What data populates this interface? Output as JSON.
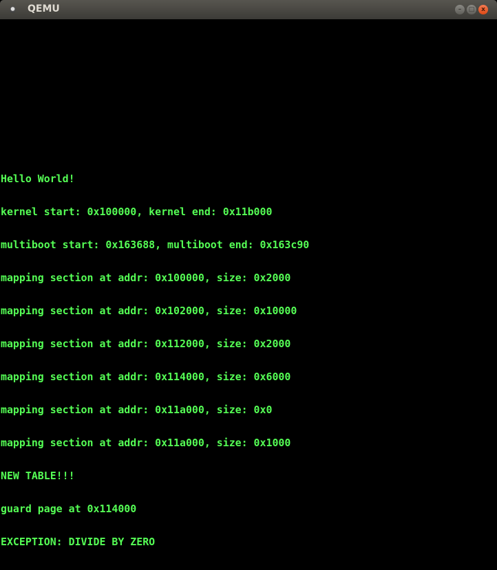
{
  "window": {
    "title": "QEMU",
    "buttons": {
      "minimize": "–",
      "maximize": "□",
      "close": "x"
    }
  },
  "console": {
    "text_color": "#55ff55",
    "lines": [
      "Hello World!",
      "kernel start: 0x100000, kernel end: 0x11b000",
      "multiboot start: 0x163688, multiboot end: 0x163c90",
      "mapping section at addr: 0x100000, size: 0x2000",
      "mapping section at addr: 0x102000, size: 0x10000",
      "mapping section at addr: 0x112000, size: 0x2000",
      "mapping section at addr: 0x114000, size: 0x6000",
      "mapping section at addr: 0x11a000, size: 0x0",
      "mapping section at addr: 0x11a000, size: 0x1000",
      "NEW TABLE!!!",
      "guard page at 0x114000",
      "EXCEPTION: DIVIDE BY ZERO"
    ]
  }
}
